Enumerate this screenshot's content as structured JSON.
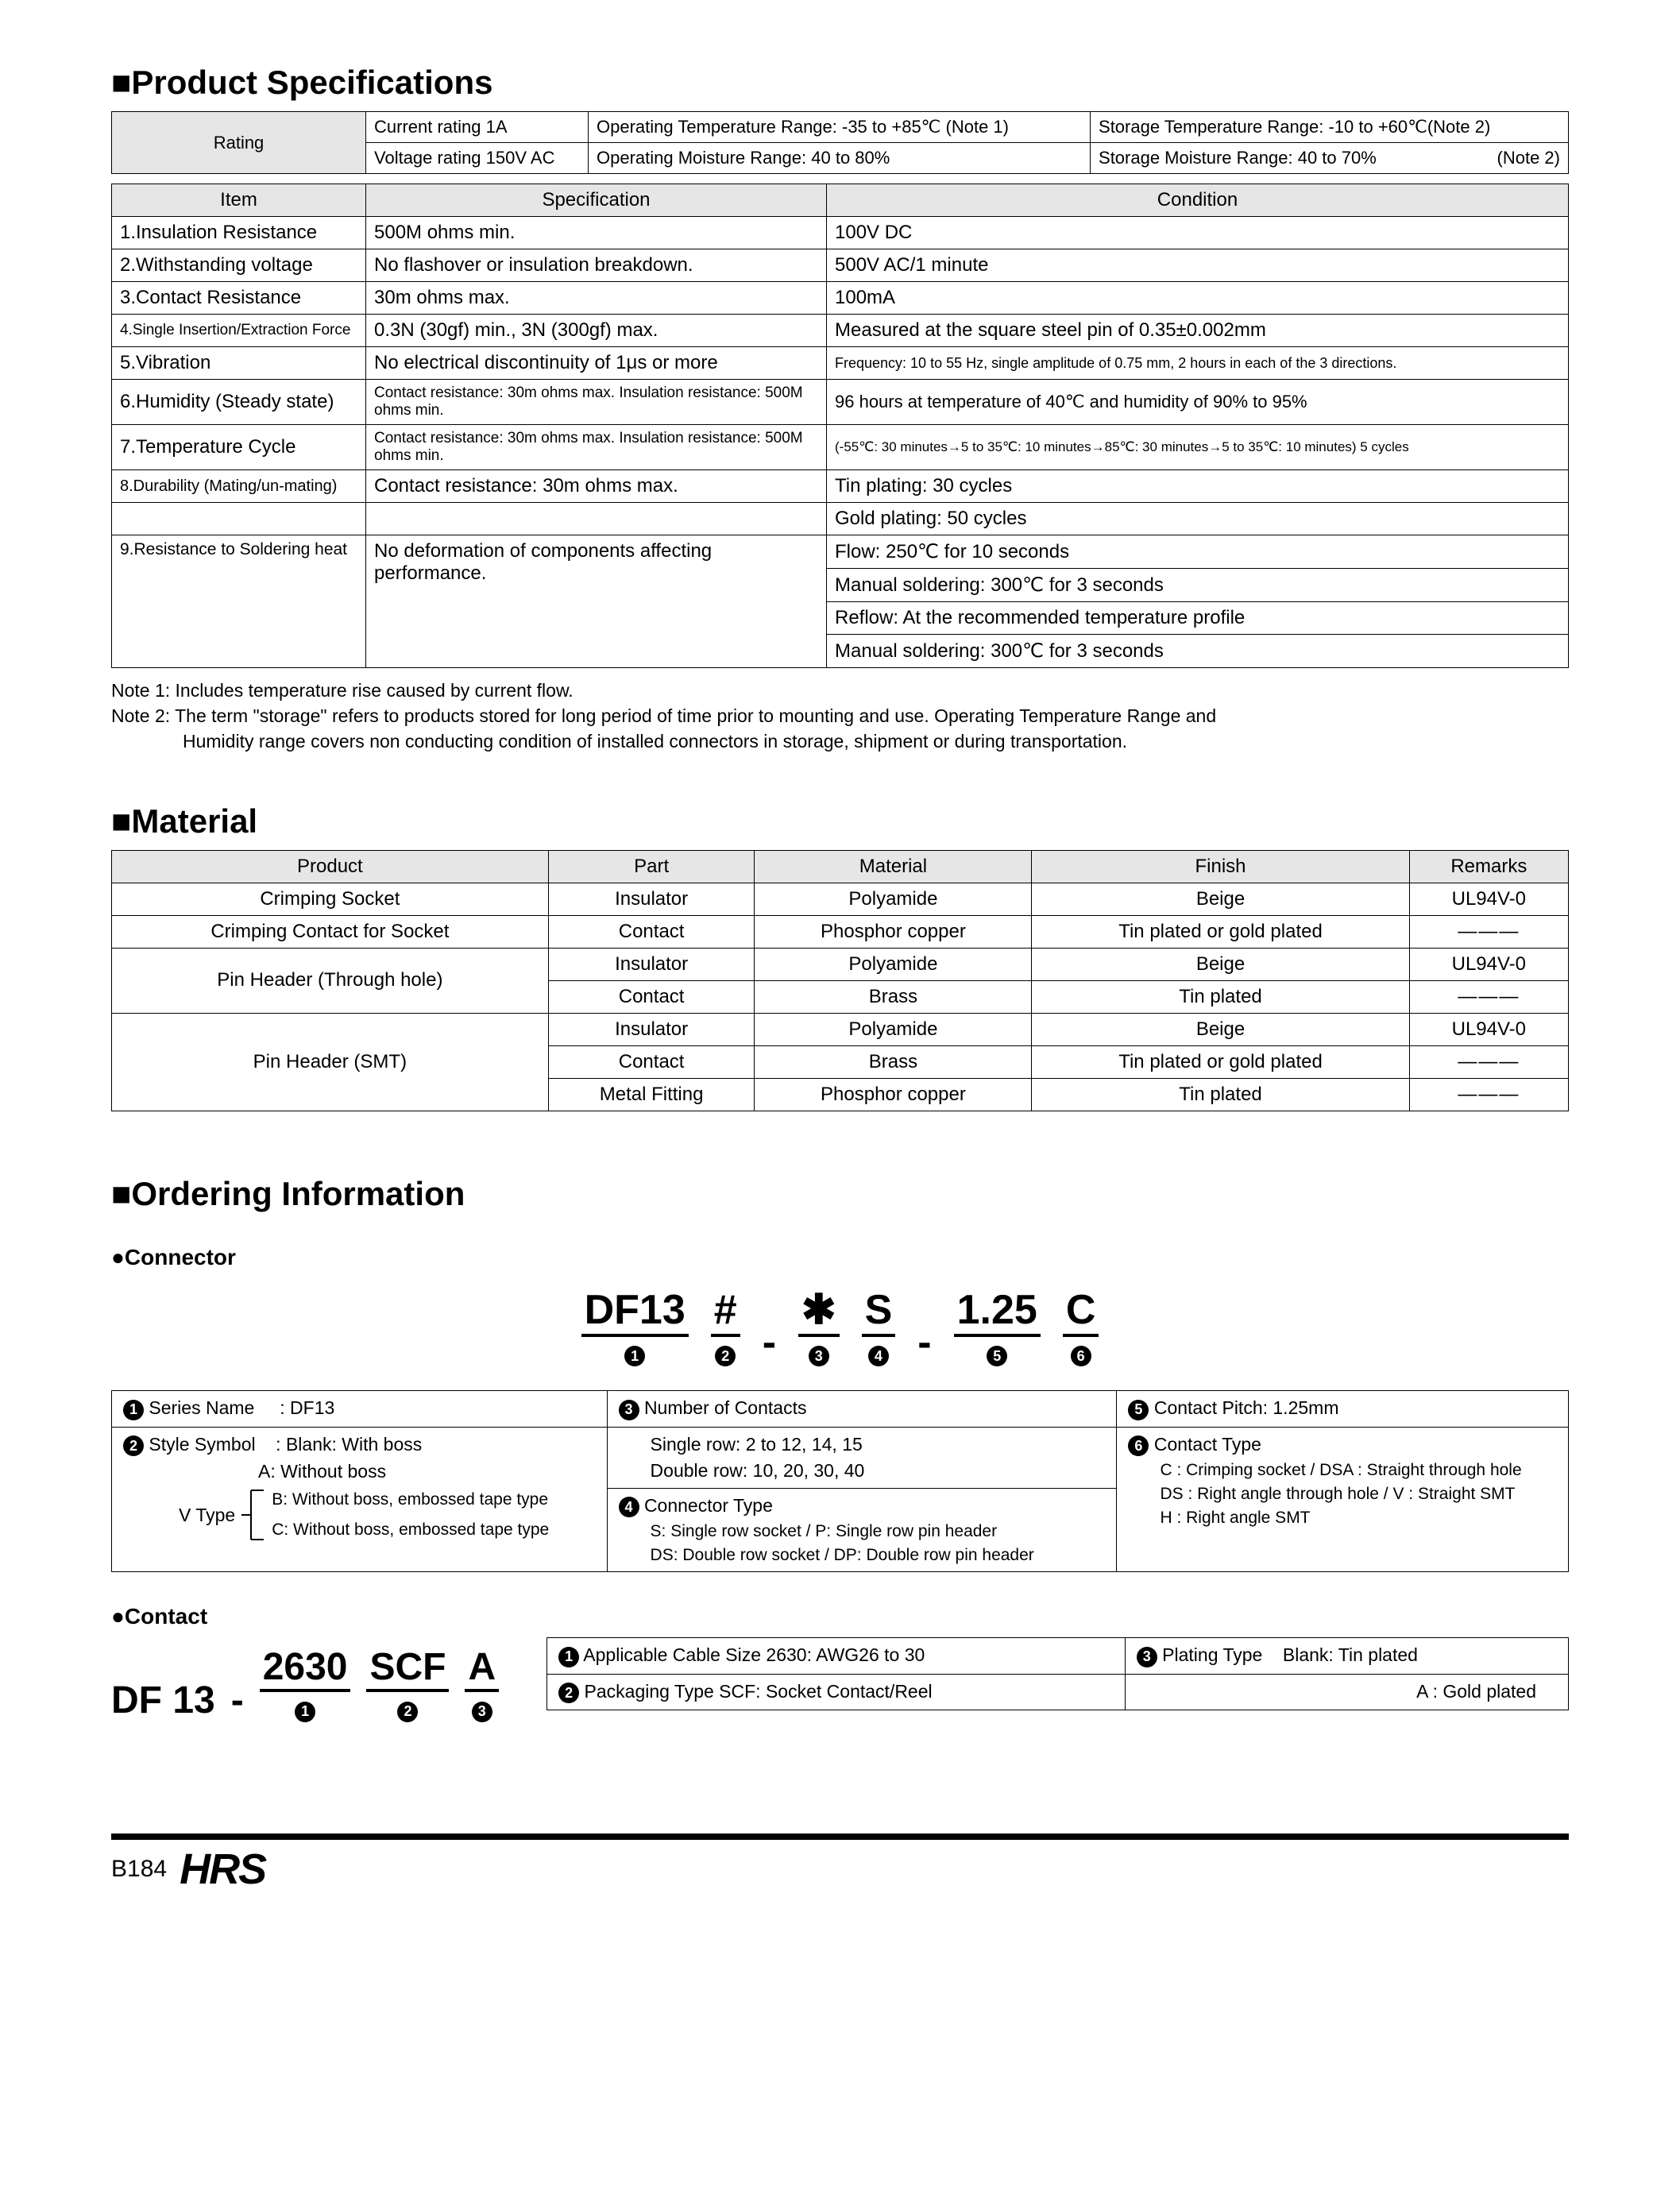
{
  "sections": {
    "product_spec_title": "Product Specifications",
    "material_title": "Material",
    "ordering_title": "Ordering Information",
    "connector_label": "Connector",
    "contact_label": "Contact"
  },
  "rating_table": {
    "row_label": "Rating",
    "r1c1": "Current rating  1A",
    "r1c2": "Operating Temperature Range: -35 to +85℃ (Note 1)",
    "r1c3": "Storage Temperature Range: -10 to +60℃(Note 2)",
    "r2c1": "Voltage rating  150V AC",
    "r2c2": "Operating Moisture Range: 40 to 80%",
    "r2c3a": "Storage Moisture Range: 40 to 70%",
    "r2c3b": "(Note 2)"
  },
  "spec_headers": {
    "item": "Item",
    "spec": "Specification",
    "cond": "Condition"
  },
  "specs": [
    {
      "item": "1.Insulation Resistance",
      "spec": "500M ohms min.",
      "cond": "100V DC"
    },
    {
      "item": "2.Withstanding voltage",
      "spec": "No flashover or insulation breakdown.",
      "cond": "500V AC/1 minute"
    },
    {
      "item": "3.Contact Resistance",
      "spec": "30m ohms max.",
      "cond": "100mA"
    },
    {
      "item": "4.Single Insertion/Extraction Force",
      "spec": "0.3N (30gf) min., 3N (300gf) max.",
      "cond": "Measured at the square steel pin of 0.35±0.002mm",
      "item_fs": "19px"
    },
    {
      "item": "5.Vibration",
      "spec": "No electrical discontinuity of 1μs or more",
      "cond": "Frequency: 10 to 55 Hz, single amplitude of 0.75 mm, 2 hours in each of the 3 directions.",
      "cond_fs": "18px"
    },
    {
      "item": "6.Humidity (Steady state)",
      "spec": "Contact resistance: 30m ohms max. Insulation resistance: 500M ohms min.",
      "cond": "96 hours at temperature of 40℃ and humidity of 90% to 95%",
      "spec_fs": "19px",
      "cond_fs": "22px"
    },
    {
      "item": "7.Temperature Cycle",
      "spec": "Contact resistance: 30m ohms max. Insulation resistance: 500M ohms min.",
      "cond": "(-55℃: 30 minutes→5 to 35℃: 10 minutes→85℃: 30 minutes→5 to 35℃: 10 minutes) 5 cycles",
      "spec_fs": "19px",
      "cond_fs": "17px"
    }
  ],
  "spec8": {
    "item": "8.Durability (Mating/un-mating)",
    "spec": "Contact resistance: 30m ohms max.",
    "cond1": "Tin plating: 30 cycles",
    "cond2": "Gold plating: 50 cycles"
  },
  "spec9": {
    "item": "9.Resistance to Soldering heat",
    "spec": "No deformation of components affecting performance.",
    "cond1": "Flow: 250℃ for 10 seconds",
    "cond2": "Manual soldering: 300℃ for 3 seconds",
    "cond3": "Reflow: At the recommended temperature profile",
    "cond4": "Manual soldering: 300℃ for 3 seconds"
  },
  "notes": {
    "n1": "Note 1: Includes temperature rise caused by current flow.",
    "n2a": "Note 2: The term \"storage\" refers to products stored for long period of time prior to mounting and use. Operating Temperature Range and",
    "n2b": "Humidity range covers non conducting condition of installed connectors in storage, shipment or during transportation."
  },
  "material_headers": {
    "product": "Product",
    "part": "Part",
    "material": "Material",
    "finish": "Finish",
    "remarks": "Remarks"
  },
  "materials": {
    "r1": {
      "product": "Crimping Socket",
      "part": "Insulator",
      "material": "Polyamide",
      "finish": "Beige",
      "remarks": "UL94V-0"
    },
    "r2": {
      "product": "Crimping Contact for Socket",
      "part": "Contact",
      "material": "Phosphor copper",
      "finish": "Tin plated or gold plated",
      "remarks": "―――"
    },
    "r3_prod": "Pin Header (Through hole)",
    "r3a": {
      "part": "Insulator",
      "material": "Polyamide",
      "finish": "Beige",
      "remarks": "UL94V-0"
    },
    "r3b": {
      "part": "Contact",
      "material": "Brass",
      "finish": "Tin plated",
      "remarks": "―――"
    },
    "r4_prod": "Pin Header (SMT)",
    "r4a": {
      "part": "Insulator",
      "material": "Polyamide",
      "finish": "Beige",
      "remarks": "UL94V-0"
    },
    "r4b": {
      "part": "Contact",
      "material": "Brass",
      "finish": "Tin plated or gold plated",
      "remarks": "―――"
    },
    "r4c": {
      "part": "Metal Fitting",
      "material": "Phosphor copper",
      "finish": "Tin plated",
      "remarks": "―――"
    }
  },
  "connector_code": {
    "p1": "DF13",
    "p2": "#",
    "p3": "✱",
    "p4": "S",
    "p5": "1.25",
    "p6": "C"
  },
  "connector_info": {
    "c1_title": "Series Name",
    "c1_val": ": DF13",
    "c2_title": "Style Symbol",
    "c2_val": ": Blank: With boss",
    "c2_a": "A: Without boss",
    "c2_vlabel": "V Type",
    "c2_b": "B: Without boss, embossed tape type",
    "c2_c": "C: Without boss, embossed tape type",
    "c3_title": "Number of Contacts",
    "c3_a": "Single row: 2 to 12, 14, 15",
    "c3_b": "Double row: 10, 20, 30, 40",
    "c4_title": "Connector Type",
    "c4_a": "S: Single row socket / P: Single row pin header",
    "c4_b": "DS: Double row socket / DP: Double row pin header",
    "c5_title": "Contact Pitch: 1.25mm",
    "c6_title": "Contact Type",
    "c6_a": "C : Crimping socket / DSA : Straight through hole",
    "c6_b": "DS : Right angle through hole / V : Straight SMT",
    "c6_c": "H : Right angle SMT"
  },
  "contact_code": {
    "p0": "DF 13",
    "p1": "2630",
    "p2": "SCF",
    "p3": "A"
  },
  "contact_info": {
    "r1c1": "Applicable Cable Size  2630: AWG26 to 30",
    "r1c2": "Plating Type",
    "r1c2b": "Blank: Tin plated",
    "r2c1": "Packaging Type  SCF: Socket Contact/Reel",
    "r2c2": "A    : Gold plated"
  },
  "footer": {
    "page": "B184",
    "logo": "HRS"
  }
}
